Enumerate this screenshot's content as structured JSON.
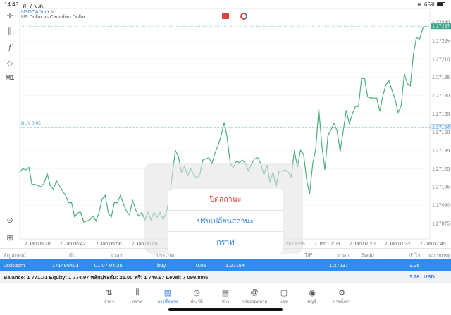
{
  "status": {
    "time": "14:45",
    "date": "ศ. 7 ม.ค.",
    "battery": "65%"
  },
  "chart": {
    "symbol": "USDCADm",
    "timeframe": "M1",
    "description": "US Dollar vs Canadian Dollar",
    "buy_label": "BUY 0.05",
    "current_price": "1.27237",
    "order_price": "1.27154",
    "line_color": "#4caf7d",
    "accent": "#2f8cf0"
  },
  "chart_data": {
    "type": "line",
    "ylim": [
      1.27075,
      1.2724
    ],
    "yticks": [
      "1.27240",
      "1.27225",
      "1.27210",
      "1.27195",
      "1.27180",
      "1.27165",
      "1.27150",
      "1.27135",
      "1.27120",
      "1.27105",
      "1.27090",
      "1.27075"
    ],
    "xticks": [
      "7 Jan 05:30",
      "7 Jan 05:42",
      "7 Jan 05:56",
      "7 Jan 06:08",
      "7 Jan 06:56",
      "7 Jan 07:08",
      "7 Jan 07:20",
      "7 Jan 07:32",
      "7 Jan 07:45"
    ],
    "values": [
      1.27117,
      1.2712,
      1.27119,
      1.27121,
      1.27107,
      1.27107,
      1.27106,
      1.27105,
      1.27108,
      1.27116,
      1.27106,
      1.27103,
      1.2711,
      1.27106,
      1.27102,
      1.27098,
      1.27092,
      1.27092,
      1.2708,
      1.27084,
      1.27084,
      1.27076,
      1.27077,
      1.27078,
      1.27081,
      1.27077,
      1.27084,
      1.27095,
      1.27098,
      1.27084,
      1.2708,
      1.27092,
      1.27092,
      1.27098,
      1.27091,
      1.27085,
      1.27082,
      1.27094,
      1.27086,
      1.27081,
      1.27084,
      1.27078,
      1.27084,
      1.27078,
      1.27084,
      1.2708,
      1.27084,
      1.27078,
      1.27084,
      1.27094,
      1.27115,
      1.27135,
      1.2713,
      1.27117,
      1.27122,
      1.27114,
      1.2712,
      1.27115,
      1.27112,
      1.27115,
      1.27127,
      1.27128,
      1.27129,
      1.27124,
      1.27133,
      1.27139,
      1.27147,
      1.27158,
      1.27145,
      1.27124,
      1.27121,
      1.27126,
      1.27125,
      1.27127,
      1.27124,
      1.27118,
      1.27124,
      1.27128,
      1.27129,
      1.27124,
      1.27115,
      1.27123,
      1.27109,
      1.27117,
      1.27105,
      1.27118,
      1.27118,
      1.27119,
      1.27117,
      1.27113,
      1.27135,
      1.27121,
      1.27135,
      1.27132,
      1.27111,
      1.27099,
      1.27124,
      1.27136,
      1.27169,
      1.27139,
      1.27119,
      1.27147,
      1.27152,
      1.27157,
      1.27151,
      1.27134,
      1.27151,
      1.27168,
      1.27157,
      1.27165,
      1.27171,
      1.27171,
      1.27194,
      1.27194,
      1.27179,
      1.27178,
      1.27178,
      1.27178,
      1.27167,
      1.2718,
      1.27189,
      1.27192,
      1.27184,
      1.27177,
      1.27166,
      1.27172,
      1.27198,
      1.2719,
      1.27188,
      1.27214,
      1.27228,
      1.27226,
      1.27235,
      1.27237
    ]
  },
  "left_tools": {
    "tf_label": "M1"
  },
  "popup": {
    "close": "ปิดสถานะ",
    "modify": "ปรับเปลี่ยนสถานะ",
    "chart": "กราฟ",
    "close_color": "#e0443a"
  },
  "table": {
    "headers": [
      "สัญลักษณ์",
      "ตั๋ว",
      "เวลา",
      "ประเภท",
      "T/P",
      "ราคา",
      "Swap",
      "กำไร",
      "หมายเหตุ"
    ],
    "row": {
      "symbol": "usdcadm",
      "ticket": "171485401",
      "time": "01.07 04:25",
      "type": "buy",
      "volume": "0.05",
      "open_price": "1.27154",
      "price": "1.27237",
      "profit": "3.26"
    }
  },
  "balance": {
    "text": "Balance: 1 771.71 Equity: 1 774.97 หลักประกัน: 25.00 ฟรี: 1 749.97 Level: 7 099.88%",
    "profit": "3.26",
    "currency": "USD"
  },
  "tabs": [
    {
      "label": "ราคา",
      "icon": "arrows-icon"
    },
    {
      "label": "กราฟ",
      "icon": "candles-icon"
    },
    {
      "label": "การซื้อขาย",
      "icon": "trade-chart-icon"
    },
    {
      "label": "ประวัติ",
      "icon": "history-icon"
    },
    {
      "label": "ข่าว",
      "icon": "news-icon"
    },
    {
      "label": "กล่องจดหมาย",
      "icon": "mail-icon"
    },
    {
      "label": "แชท",
      "icon": "chat-icon"
    },
    {
      "label": "บัญชี",
      "icon": "account-icon"
    },
    {
      "label": "การตั้งค่า",
      "icon": "settings-icon"
    }
  ]
}
